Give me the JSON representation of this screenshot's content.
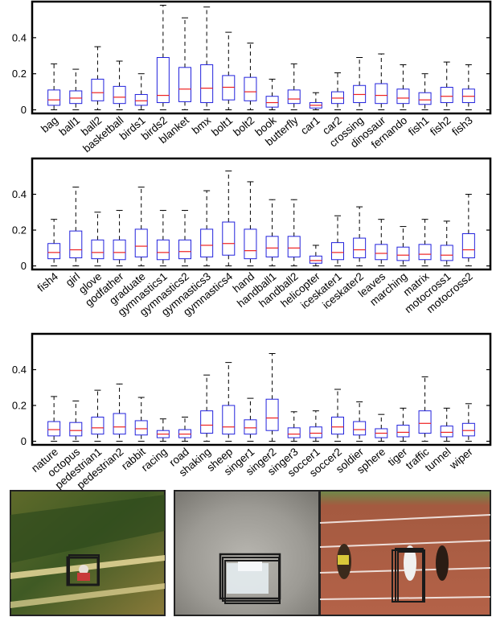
{
  "chart_data": [
    {
      "type": "box",
      "ylim": [
        -0.02,
        0.6
      ],
      "yticks": [
        0,
        0.2,
        0.4
      ],
      "ytick_labels": [
        "0",
        "0.2",
        "0.4"
      ],
      "categories": [
        "bag",
        "ball1",
        "ball2",
        "basketball",
        "birds1",
        "birds2",
        "blanket",
        "bmx",
        "bolt1",
        "bolt2",
        "book",
        "butterfly",
        "car1",
        "car2",
        "crossing",
        "dinosaur",
        "fernando",
        "fish1",
        "fish2",
        "fish3"
      ],
      "series": [
        {
          "whislo": 0,
          "q1": 0.025,
          "med": 0.055,
          "q3": 0.11,
          "whishi": 0.255
        },
        {
          "whislo": 0,
          "q1": 0.035,
          "med": 0.065,
          "q3": 0.105,
          "whishi": 0.225
        },
        {
          "whislo": 0,
          "q1": 0.05,
          "med": 0.095,
          "q3": 0.17,
          "whishi": 0.35
        },
        {
          "whislo": 0,
          "q1": 0.035,
          "med": 0.07,
          "q3": 0.13,
          "whishi": 0.27
        },
        {
          "whislo": 0,
          "q1": 0.025,
          "med": 0.05,
          "q3": 0.085,
          "whishi": 0.2
        },
        {
          "whislo": 0,
          "q1": 0.04,
          "med": 0.08,
          "q3": 0.29,
          "whishi": 0.58
        },
        {
          "whislo": 0,
          "q1": 0.045,
          "med": 0.115,
          "q3": 0.235,
          "whishi": 0.51
        },
        {
          "whislo": 0,
          "q1": 0.04,
          "med": 0.12,
          "q3": 0.25,
          "whishi": 0.57
        },
        {
          "whislo": 0,
          "q1": 0.055,
          "med": 0.125,
          "q3": 0.19,
          "whishi": 0.43
        },
        {
          "whislo": 0,
          "q1": 0.05,
          "med": 0.1,
          "q3": 0.18,
          "whishi": 0.37
        },
        {
          "whislo": 0,
          "q1": 0.015,
          "med": 0.04,
          "q3": 0.075,
          "whishi": 0.17
        },
        {
          "whislo": 0,
          "q1": 0.035,
          "med": 0.06,
          "q3": 0.11,
          "whishi": 0.255
        },
        {
          "whislo": 0,
          "q1": 0.01,
          "med": 0.025,
          "q3": 0.04,
          "whishi": 0.095
        },
        {
          "whislo": 0,
          "q1": 0.035,
          "med": 0.065,
          "q3": 0.1,
          "whishi": 0.205
        },
        {
          "whislo": 0,
          "q1": 0.04,
          "med": 0.085,
          "q3": 0.135,
          "whishi": 0.29
        },
        {
          "whislo": 0,
          "q1": 0.035,
          "med": 0.08,
          "q3": 0.145,
          "whishi": 0.31
        },
        {
          "whislo": 0,
          "q1": 0.035,
          "med": 0.065,
          "q3": 0.115,
          "whishi": 0.25
        },
        {
          "whislo": 0,
          "q1": 0.03,
          "med": 0.055,
          "q3": 0.095,
          "whishi": 0.2
        },
        {
          "whislo": 0,
          "q1": 0.04,
          "med": 0.075,
          "q3": 0.125,
          "whishi": 0.265
        },
        {
          "whislo": 0,
          "q1": 0.04,
          "med": 0.075,
          "q3": 0.115,
          "whishi": 0.25
        }
      ]
    },
    {
      "type": "box",
      "ylim": [
        -0.02,
        0.6
      ],
      "yticks": [
        0,
        0.2,
        0.4
      ],
      "ytick_labels": [
        "0",
        "0.2",
        "0.4"
      ],
      "categories": [
        "fish4",
        "girl",
        "glove",
        "godfather",
        "graduate",
        "gymnastics1",
        "gymnastics2",
        "gymnastics3",
        "gymnastics4",
        "hand",
        "handball1",
        "handball2",
        "helicopter",
        "iceskater1",
        "iceskater2",
        "leaves",
        "marching",
        "matrix",
        "motocross1",
        "motocross2"
      ],
      "series": [
        {
          "whislo": 0,
          "q1": 0.04,
          "med": 0.075,
          "q3": 0.125,
          "whishi": 0.26
        },
        {
          "whislo": 0,
          "q1": 0.045,
          "med": 0.09,
          "q3": 0.195,
          "whishi": 0.44
        },
        {
          "whislo": 0,
          "q1": 0.04,
          "med": 0.075,
          "q3": 0.145,
          "whishi": 0.3
        },
        {
          "whislo": 0,
          "q1": 0.035,
          "med": 0.075,
          "q3": 0.145,
          "whishi": 0.31
        },
        {
          "whislo": 0,
          "q1": 0.05,
          "med": 0.11,
          "q3": 0.205,
          "whishi": 0.44
        },
        {
          "whislo": 0,
          "q1": 0.035,
          "med": 0.075,
          "q3": 0.145,
          "whishi": 0.31
        },
        {
          "whislo": 0,
          "q1": 0.04,
          "med": 0.08,
          "q3": 0.145,
          "whishi": 0.31
        },
        {
          "whislo": 0,
          "q1": 0.05,
          "med": 0.115,
          "q3": 0.205,
          "whishi": 0.42
        },
        {
          "whislo": 0,
          "q1": 0.06,
          "med": 0.125,
          "q3": 0.245,
          "whishi": 0.53
        },
        {
          "whislo": 0,
          "q1": 0.04,
          "med": 0.085,
          "q3": 0.205,
          "whishi": 0.47
        },
        {
          "whislo": 0,
          "q1": 0.05,
          "med": 0.1,
          "q3": 0.165,
          "whishi": 0.37
        },
        {
          "whislo": 0,
          "q1": 0.05,
          "med": 0.1,
          "q3": 0.165,
          "whishi": 0.37
        },
        {
          "whislo": 0,
          "q1": 0.015,
          "med": 0.03,
          "q3": 0.055,
          "whishi": 0.115
        },
        {
          "whislo": 0,
          "q1": 0.035,
          "med": 0.075,
          "q3": 0.13,
          "whishi": 0.28
        },
        {
          "whislo": 0,
          "q1": 0.045,
          "med": 0.09,
          "q3": 0.155,
          "whishi": 0.33
        },
        {
          "whislo": 0,
          "q1": 0.035,
          "med": 0.07,
          "q3": 0.12,
          "whishi": 0.26
        },
        {
          "whislo": 0,
          "q1": 0.03,
          "med": 0.06,
          "q3": 0.105,
          "whishi": 0.22
        },
        {
          "whislo": 0,
          "q1": 0.035,
          "med": 0.065,
          "q3": 0.12,
          "whishi": 0.26
        },
        {
          "whislo": 0,
          "q1": 0.03,
          "med": 0.06,
          "q3": 0.115,
          "whishi": 0.25
        },
        {
          "whislo": 0,
          "q1": 0.045,
          "med": 0.09,
          "q3": 0.18,
          "whishi": 0.4
        }
      ]
    },
    {
      "type": "box",
      "ylim": [
        -0.02,
        0.6
      ],
      "yticks": [
        0,
        0.2,
        0.4
      ],
      "ytick_labels": [
        "0",
        "0.2",
        "0.4"
      ],
      "categories": [
        "nature",
        "octopus",
        "pedestrian1",
        "pedestrian2",
        "rabbit",
        "racing",
        "road",
        "shaking",
        "sheep",
        "singer1",
        "singer2",
        "singer3",
        "soccer1",
        "soccer2",
        "soldier",
        "sphere",
        "tiger",
        "traffic",
        "tunnel",
        "wiper"
      ],
      "series": [
        {
          "whislo": 0,
          "q1": 0.03,
          "med": 0.065,
          "q3": 0.11,
          "whishi": 0.25
        },
        {
          "whislo": 0,
          "q1": 0.03,
          "med": 0.06,
          "q3": 0.105,
          "whishi": 0.225
        },
        {
          "whislo": 0,
          "q1": 0.04,
          "med": 0.075,
          "q3": 0.135,
          "whishi": 0.285
        },
        {
          "whislo": 0,
          "q1": 0.04,
          "med": 0.08,
          "q3": 0.155,
          "whishi": 0.32
        },
        {
          "whislo": 0,
          "q1": 0.035,
          "med": 0.07,
          "q3": 0.115,
          "whishi": 0.245
        },
        {
          "whislo": 0,
          "q1": 0.02,
          "med": 0.04,
          "q3": 0.06,
          "whishi": 0.125
        },
        {
          "whislo": 0,
          "q1": 0.02,
          "med": 0.04,
          "q3": 0.065,
          "whishi": 0.135
        },
        {
          "whislo": 0,
          "q1": 0.045,
          "med": 0.09,
          "q3": 0.17,
          "whishi": 0.37
        },
        {
          "whislo": 0,
          "q1": 0.04,
          "med": 0.08,
          "q3": 0.2,
          "whishi": 0.44
        },
        {
          "whislo": 0,
          "q1": 0.04,
          "med": 0.075,
          "q3": 0.12,
          "whishi": 0.24
        },
        {
          "whislo": 0,
          "q1": 0.06,
          "med": 0.13,
          "q3": 0.235,
          "whishi": 0.49
        },
        {
          "whislo": 0,
          "q1": 0.02,
          "med": 0.04,
          "q3": 0.075,
          "whishi": 0.165
        },
        {
          "whislo": 0,
          "q1": 0.02,
          "med": 0.045,
          "q3": 0.08,
          "whishi": 0.17
        },
        {
          "whislo": 0,
          "q1": 0.04,
          "med": 0.08,
          "q3": 0.135,
          "whishi": 0.29
        },
        {
          "whislo": 0,
          "q1": 0.035,
          "med": 0.065,
          "q3": 0.11,
          "whishi": 0.22
        },
        {
          "whislo": 0,
          "q1": 0.02,
          "med": 0.045,
          "q3": 0.07,
          "whishi": 0.15
        },
        {
          "whislo": 0,
          "q1": 0.025,
          "med": 0.05,
          "q3": 0.09,
          "whishi": 0.185
        },
        {
          "whislo": 0,
          "q1": 0.045,
          "med": 0.1,
          "q3": 0.17,
          "whishi": 0.36
        },
        {
          "whislo": 0,
          "q1": 0.025,
          "med": 0.05,
          "q3": 0.085,
          "whishi": 0.185
        },
        {
          "whislo": 0,
          "q1": 0.03,
          "med": 0.06,
          "q3": 0.1,
          "whishi": 0.21
        }
      ]
    }
  ],
  "colors": {
    "box": "#2222dd",
    "median": "#ee2222",
    "whisker": "#000000",
    "frame": "#000000"
  },
  "thumbnails": [
    {
      "scene": "motocross-track",
      "icon": "tracked-person-bbox"
    },
    {
      "scene": "gray-rock-texture",
      "icon": "tracked-object-bbox"
    },
    {
      "scene": "running-track-athletes",
      "icon": "tracked-runner-bbox"
    }
  ]
}
